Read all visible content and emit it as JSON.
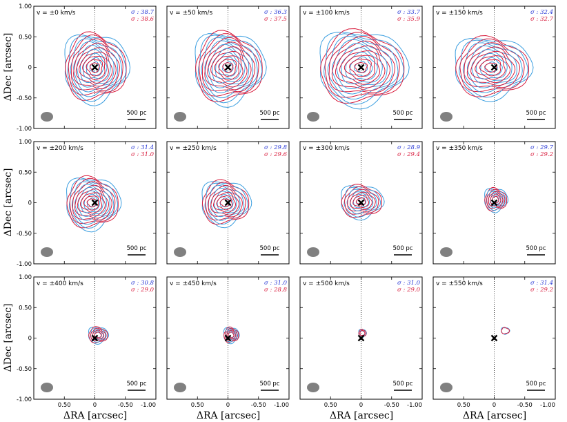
{
  "chart_data": {
    "type": "contour-grid",
    "xlabel": "ΔRA [arcsec]",
    "ylabel": "ΔDec [arcsec]",
    "xlim": [
      1.0,
      -1.0
    ],
    "ylim": [
      -1.0,
      1.0
    ],
    "x_ticks": [
      0.5,
      0.0,
      -0.5,
      -1.0
    ],
    "x_tick_labels": [
      "0.50",
      "0",
      "-0.50",
      "-1.00"
    ],
    "y_ticks": [
      1.0,
      0.5,
      0.0,
      -0.5,
      -1.0
    ],
    "y_tick_labels": [
      "1.00",
      "0.50",
      "0",
      "-0.50",
      "-1.00"
    ],
    "scale_bar_label": "500 pc",
    "sigma_prefix": "σ : ",
    "colors": {
      "blue": "#3a9ee0",
      "red": "#d81b3c",
      "sigma_blue": "#2b3bd6",
      "sigma_red": "#d81b3c"
    },
    "panels": [
      {
        "label": "v = ±0 km/s",
        "sigma_blue": "38.7",
        "sigma_red": "38.6",
        "size": 0.48,
        "cx": 0.0,
        "cy": 0.0,
        "n": 9,
        "sx": 1.0,
        "sy": 1.05
      },
      {
        "label": "v = ±50 km/s",
        "sigma_blue": "36.3",
        "sigma_red": "37.5",
        "size": 0.5,
        "cx": 0.0,
        "cy": 0.0,
        "n": 9,
        "sx": 1.05,
        "sy": 1.05
      },
      {
        "label": "v = ±100 km/s",
        "sigma_blue": "33.7",
        "sigma_red": "35.9",
        "size": 0.55,
        "cx": 0.0,
        "cy": 0.0,
        "n": 9,
        "sx": 1.2,
        "sy": 1.0
      },
      {
        "label": "v = ±150 km/s",
        "sigma_blue": "32.4",
        "sigma_red": "32.7",
        "size": 0.5,
        "cx": 0.05,
        "cy": 0.0,
        "n": 8,
        "sx": 1.15,
        "sy": 0.9
      },
      {
        "label": "v = ±200 km/s",
        "sigma_blue": "31.4",
        "sigma_red": "31.0",
        "size": 0.4,
        "cx": 0.05,
        "cy": 0.0,
        "n": 8,
        "sx": 1.0,
        "sy": 0.95
      },
      {
        "label": "v = ±250 km/s",
        "sigma_blue": "29.8",
        "sigma_red": "29.6",
        "size": 0.36,
        "cx": 0.05,
        "cy": 0.0,
        "n": 7,
        "sx": 1.0,
        "sy": 0.9
      },
      {
        "label": "v = ±300 km/s",
        "sigma_blue": "28.9",
        "sigma_red": "29.4",
        "size": 0.28,
        "cx": 0.0,
        "cy": 0.02,
        "n": 6,
        "sx": 1.1,
        "sy": 0.85
      },
      {
        "label": "v = ±350 km/s",
        "sigma_blue": "29.7",
        "sigma_red": "29.2",
        "size": 0.16,
        "cx": -0.02,
        "cy": 0.05,
        "n": 5,
        "sx": 1.0,
        "sy": 1.0
      },
      {
        "label": "v = ±400 km/s",
        "sigma_blue": "30.8",
        "sigma_red": "29.0",
        "size": 0.12,
        "cx": -0.05,
        "cy": 0.05,
        "n": 4,
        "sx": 1.1,
        "sy": 0.9
      },
      {
        "label": "v = ±450 km/s",
        "sigma_blue": "31.0",
        "sigma_red": "28.8",
        "size": 0.1,
        "cx": -0.05,
        "cy": 0.05,
        "n": 4,
        "sx": 1.0,
        "sy": 1.0
      },
      {
        "label": "v = ±500 km/s",
        "sigma_blue": "31.0",
        "sigma_red": "29.0",
        "size": 0.04,
        "cx": -0.02,
        "cy": 0.08,
        "n": 2,
        "sx": 1.0,
        "sy": 1.0
      },
      {
        "label": "v = ±550 km/s",
        "sigma_blue": "31.4",
        "sigma_red": "29.2",
        "size": 0.03,
        "cx": -0.18,
        "cy": 0.12,
        "n": 1,
        "sx": 1.3,
        "sy": 1.0
      }
    ]
  }
}
